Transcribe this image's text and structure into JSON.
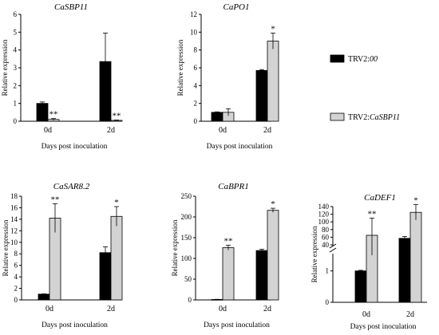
{
  "chart_data": [
    {
      "id": "cas",
      "type": "bar",
      "title": "CaSBP11",
      "ylabel": "Relative expression",
      "xlabel": "Days post inoculation",
      "categories": [
        "0d",
        "2d"
      ],
      "ylim": [
        0,
        6
      ],
      "yticks": [
        "0",
        "1",
        "2",
        "3",
        "4",
        "5",
        "6"
      ],
      "series": [
        {
          "values": [
            1.0,
            3.35
          ],
          "errors": [
            0.08,
            1.6
          ]
        },
        {
          "values": [
            0.1,
            0.05
          ],
          "errors": [
            0.05,
            0.02
          ]
        }
      ],
      "annotations": [
        [
          "",
          ""
        ],
        [
          "**",
          "**"
        ]
      ]
    },
    {
      "id": "capo",
      "type": "bar",
      "title": "CaPO1",
      "ylabel": "Relative expression",
      "xlabel": "Days post inoculation",
      "categories": [
        "0d",
        "2d"
      ],
      "ylim": [
        0,
        12
      ],
      "yticks": [
        "0",
        "2",
        "4",
        "6",
        "8",
        "10",
        "12"
      ],
      "series": [
        {
          "values": [
            1.0,
            5.7
          ],
          "errors": [
            0.05,
            0.1
          ]
        },
        {
          "values": [
            1.0,
            9.0
          ],
          "errors": [
            0.4,
            0.9
          ]
        }
      ],
      "annotations": [
        [
          "",
          ""
        ],
        [
          "",
          "*"
        ]
      ]
    },
    {
      "id": "sar",
      "type": "bar",
      "title": "CaSAR8.2",
      "ylabel": "Relative expression",
      "xlabel": "Days post inoculation",
      "categories": [
        "0d",
        "2d"
      ],
      "ylim": [
        0,
        18
      ],
      "yticks": [
        "0",
        "2",
        "4",
        "6",
        "8",
        "10",
        "12",
        "14",
        "16",
        "18"
      ],
      "series": [
        {
          "values": [
            1.0,
            8.2
          ],
          "errors": [
            0.05,
            1.0
          ]
        },
        {
          "values": [
            14.2,
            14.5
          ],
          "errors": [
            2.5,
            1.7
          ]
        }
      ],
      "annotations": [
        [
          "",
          ""
        ],
        [
          "**",
          "*"
        ]
      ]
    },
    {
      "id": "bpr",
      "type": "bar",
      "title": "CaBPR1",
      "ylabel": "Relative expression",
      "xlabel": "Days post inoculation",
      "categories": [
        "0d",
        "2d"
      ],
      "ylim": [
        0,
        250
      ],
      "yticks": [
        "0",
        "50",
        "100",
        "150",
        "200",
        "250"
      ],
      "series": [
        {
          "values": [
            1.0,
            119
          ],
          "errors": [
            0.5,
            3
          ]
        },
        {
          "values": [
            126,
            216
          ],
          "errors": [
            6,
            5
          ]
        }
      ],
      "annotations": [
        [
          "",
          ""
        ],
        [
          "**",
          "*"
        ]
      ]
    },
    {
      "id": "def",
      "type": "bar",
      "title": "CaDEF1",
      "ylabel": "Relative expression",
      "xlabel": "Days post inoculation",
      "categories": [
        "0d",
        "2d"
      ],
      "yaxis_break": true,
      "ylim_lower": [
        0,
        1.5
      ],
      "ylim_upper": [
        40,
        140
      ],
      "yticks_lower": [
        "0",
        "1"
      ],
      "yticks_upper": [
        "40",
        "60",
        "80",
        "100",
        "120",
        "140"
      ],
      "series": [
        {
          "values": [
            1.0,
            57
          ],
          "errors": [
            0.02,
            5
          ]
        },
        {
          "values": [
            65,
            125
          ],
          "errors": [
            45,
            20
          ]
        }
      ],
      "annotations": [
        [
          "",
          ""
        ],
        [
          "**",
          "*"
        ]
      ]
    }
  ],
  "legend": {
    "placement": "right",
    "entries": [
      {
        "prefix": "TRV2:",
        "italic": "00",
        "color": "#000000"
      },
      {
        "prefix": "TRV2:",
        "italic": "CaSBP11",
        "color": "#d3d3d3"
      }
    ]
  }
}
